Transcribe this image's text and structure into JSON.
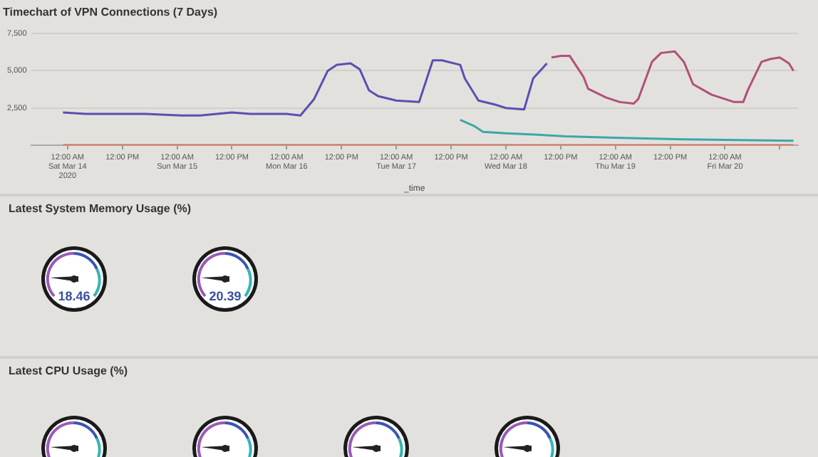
{
  "chart_data": [
    {
      "type": "line",
      "title": "Timechart of VPN Connections (7 Days)",
      "xlabel": "_time",
      "xlim": [
        "2020-03-13T16:00",
        "2020-03-20T16:00"
      ],
      "ylim": [
        0,
        7500
      ],
      "xticks": [
        {
          "value": "2020-03-14T00:00",
          "label": "12:00 AM\nSat Mar 14\n2020"
        },
        {
          "value": "2020-03-14T12:00",
          "label": "12:00 PM"
        },
        {
          "value": "2020-03-15T00:00",
          "label": "12:00 AM\nSun Mar 15"
        },
        {
          "value": "2020-03-15T12:00",
          "label": "12:00 PM"
        },
        {
          "value": "2020-03-16T00:00",
          "label": "12:00 AM\nMon Mar 16"
        },
        {
          "value": "2020-03-16T12:00",
          "label": "12:00 PM"
        },
        {
          "value": "2020-03-17T00:00",
          "label": "12:00 AM\nTue Mar 17"
        },
        {
          "value": "2020-03-17T12:00",
          "label": "12:00 PM"
        },
        {
          "value": "2020-03-18T00:00",
          "label": "12:00 AM\nWed Mar 18"
        },
        {
          "value": "2020-03-18T12:00",
          "label": "12:00 PM"
        },
        {
          "value": "2020-03-19T00:00",
          "label": "12:00 AM\nThu Mar 19"
        },
        {
          "value": "2020-03-19T12:00",
          "label": "12:00 PM"
        },
        {
          "value": "2020-03-20T00:00",
          "label": "12:00 AM\nFri Mar 20"
        },
        {
          "value": "2020-03-20T12:00",
          "label": null
        }
      ],
      "yticks": [
        {
          "value": 2500,
          "label": "2,500"
        },
        {
          "value": 5000,
          "label": "5,000"
        },
        {
          "value": 7500,
          "label": "7,500"
        }
      ],
      "grid": "y",
      "legend": false,
      "marker": "none",
      "line_style": "solid",
      "series": [
        {
          "color": "#e06a4a",
          "x": [
            "2020-03-13T23:00",
            "2020-03-20T15:00"
          ],
          "values": [
            0,
            0
          ]
        },
        {
          "color": "#5b4fb0",
          "x": [
            "2020-03-13T23:00",
            "2020-03-14T04:00",
            "2020-03-14T17:00",
            "2020-03-15T01:00",
            "2020-03-15T05:00",
            "2020-03-15T12:00",
            "2020-03-15T16:00",
            "2020-03-16T00:00",
            "2020-03-16T03:00",
            "2020-03-16T06:00",
            "2020-03-16T09:00",
            "2020-03-16T11:00",
            "2020-03-16T14:00",
            "2020-03-16T16:00",
            "2020-03-16T18:00",
            "2020-03-16T20:00",
            "2020-03-17T00:00",
            "2020-03-17T05:00",
            "2020-03-17T08:00",
            "2020-03-17T10:00",
            "2020-03-17T14:00",
            "2020-03-17T15:00",
            "2020-03-17T18:00",
            "2020-03-17T22:00",
            "2020-03-18T00:00",
            "2020-03-18T04:00",
            "2020-03-18T06:00",
            "2020-03-18T09:00"
          ],
          "values": [
            2200,
            2100,
            2100,
            2000,
            2000,
            2200,
            2100,
            2100,
            2000,
            3100,
            5000,
            5400,
            5500,
            5100,
            3700,
            3300,
            3000,
            2900,
            5700,
            5700,
            5400,
            4500,
            3000,
            2700,
            2500,
            2400,
            4500,
            5500
          ]
        },
        {
          "color": "#b0507a",
          "x": [
            "2020-03-18T10:00",
            "2020-03-18T12:00",
            "2020-03-18T14:00",
            "2020-03-18T17:00",
            "2020-03-18T18:00",
            "2020-03-18T22:00",
            "2020-03-19T01:00",
            "2020-03-19T04:00",
            "2020-03-19T05:00",
            "2020-03-19T08:00",
            "2020-03-19T10:00",
            "2020-03-19T13:00",
            "2020-03-19T15:00",
            "2020-03-19T17:00",
            "2020-03-19T21:00",
            "2020-03-20T00:00",
            "2020-03-20T02:00",
            "2020-03-20T04:00",
            "2020-03-20T05:00",
            "2020-03-20T08:00",
            "2020-03-20T10:00",
            "2020-03-20T12:00",
            "2020-03-20T14:00",
            "2020-03-20T15:00"
          ],
          "values": [
            5900,
            6000,
            6000,
            4600,
            3800,
            3200,
            2900,
            2800,
            3100,
            5600,
            6200,
            6300,
            5600,
            4100,
            3400,
            3100,
            2900,
            2900,
            3700,
            5600,
            5800,
            5900,
            5500,
            5000
          ]
        },
        {
          "color": "#3aa8a8",
          "x": [
            "2020-03-17T14:00",
            "2020-03-17T17:00",
            "2020-03-17T19:00",
            "2020-03-18T00:00",
            "2020-03-18T07:00",
            "2020-03-18T13:00",
            "2020-03-19T00:00",
            "2020-03-19T15:00",
            "2020-03-20T15:00"
          ],
          "values": [
            1700,
            1300,
            900,
            800,
            700,
            600,
            500,
            400,
            300
          ]
        }
      ]
    },
    {
      "type": "other",
      "title": "Latest System Memory Usage (%)",
      "annotations": [
        "18.46",
        "20.39"
      ]
    },
    {
      "type": "other",
      "title": "Latest CPU Usage (%)"
    }
  ]
}
